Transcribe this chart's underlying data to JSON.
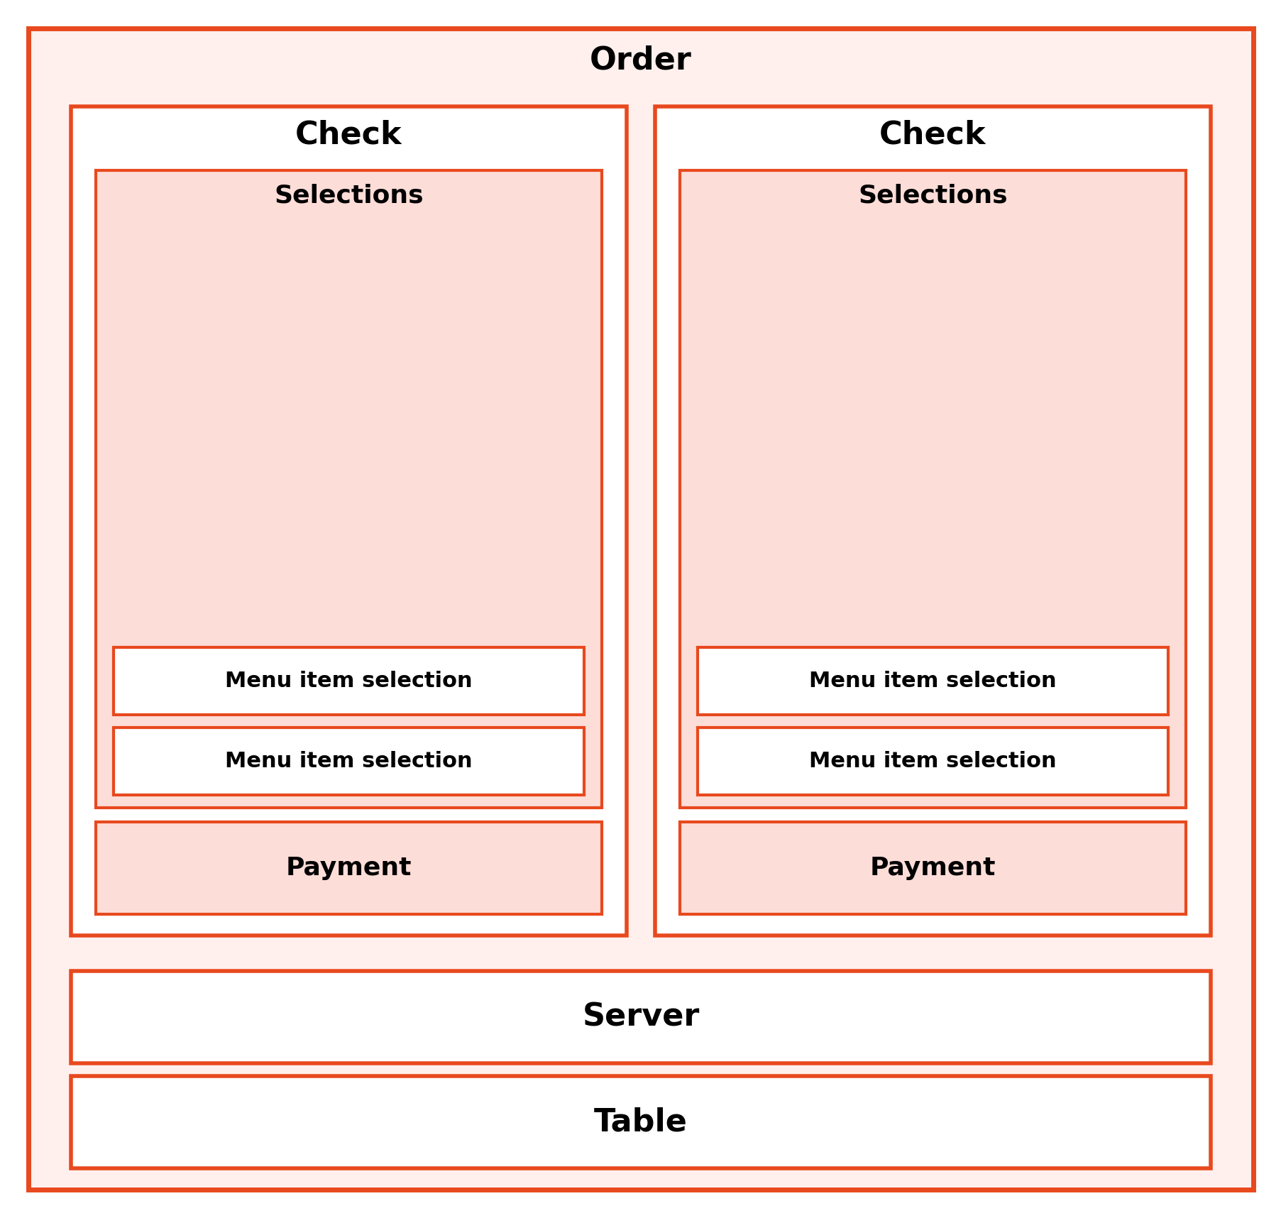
{
  "bg_color": "#FFF0EE",
  "border_color": "#E8491E",
  "white_fill": "#FFFFFF",
  "light_fill": "#FDDDD8",
  "text_color": "#000000",
  "title": "Order",
  "check_label": "Check",
  "selections_label": "Selections",
  "menu_item_label": "Menu item selection",
  "payment_label": "Payment",
  "server_label": "Server",
  "table_label": "Table",
  "font_size_title": 32,
  "font_size_label": 26,
  "font_size_small": 22,
  "border_lw_outer": 5,
  "border_lw_mid": 4,
  "border_lw_inner": 3,
  "fig_w": 18.06,
  "fig_h": 17.16,
  "dpi": 100
}
